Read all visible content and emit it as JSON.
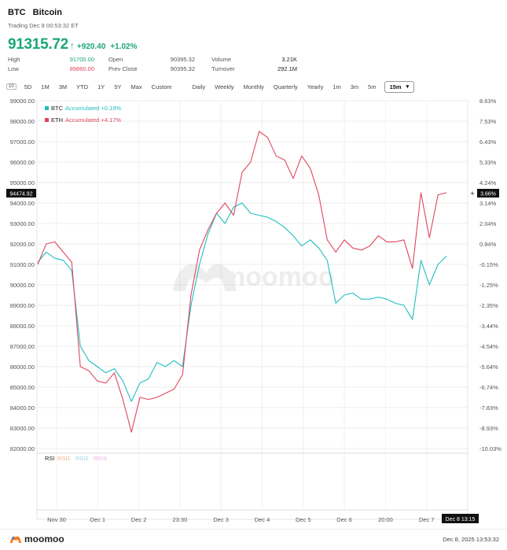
{
  "header": {
    "symbol": "BTC",
    "name": "Bitcoin",
    "status": "Trading Dec 8 00:53:32 ET",
    "price": "91315.72",
    "change": "+920.40",
    "change_pct": "+1.02%"
  },
  "stats": [
    {
      "label": "High",
      "value": "91700.00",
      "color": "#1aa67a"
    },
    {
      "label": "Open",
      "value": "90395.32",
      "color": "#555555"
    },
    {
      "label": "Volume",
      "value": "3.21K",
      "color": "#222222"
    },
    {
      "label": "Low",
      "value": "89860.00",
      "color": "#e0465e"
    },
    {
      "label": "Prev Close",
      "value": "90395.32",
      "color": "#555555"
    },
    {
      "label": "Turnover",
      "value": "292.1M",
      "color": "#222222"
    }
  ],
  "toolbar": {
    "icon_label": "10",
    "ranges": [
      "5D",
      "1M",
      "3M",
      "YTD",
      "1Y",
      "5Y",
      "Max",
      "Custom"
    ],
    "periods": [
      "Daily",
      "Weekly",
      "Monthly",
      "Quarterly",
      "Yearly",
      "1m",
      "3m",
      "5m"
    ],
    "selected_interval": "15m"
  },
  "chart_data": {
    "type": "line",
    "legend": [
      {
        "symbol": "BTC",
        "label": "Accumulated +0.19%",
        "color": "#1fbfc0"
      },
      {
        "symbol": "ETH",
        "label": "Accumulated +4.17%",
        "color": "#e0465e"
      }
    ],
    "y_left_ticks": [
      "99000.00",
      "98000.00",
      "97000.00",
      "96000.00",
      "95000.00",
      "94000.00",
      "93000.00",
      "92000.00",
      "91000.00",
      "90000.00",
      "89000.00",
      "88000.00",
      "87000.00",
      "86000.00",
      "85000.00",
      "84000.00",
      "83000.00",
      "82000.00"
    ],
    "y_right_ticks": [
      "8.63%",
      "7.53%",
      "6.43%",
      "5.33%",
      "4.24%",
      "3.14%",
      "2.04%",
      "0.94%",
      "-0.15%",
      "-1.25%",
      "-2.35%",
      "-3.44%",
      "-4.54%",
      "-5.64%",
      "-6.74%",
      "-7.83%",
      "-8.93%",
      "-10.03%"
    ],
    "ylim": [
      82000,
      99000
    ],
    "crosshair_left_value": "94474.92",
    "crosshair_right_value": "3.66%",
    "x_ticks": [
      "Nov 30",
      "Dec 1",
      "Dec 2",
      "23:30",
      "Dec 3",
      "Dec 4",
      "Dec 5",
      "Dec 6",
      "20:00",
      "Dec 7"
    ],
    "x_cursor_label": "Dec 8 13:15",
    "series": [
      {
        "name": "BTC",
        "color": "#1fbfc0",
        "values": [
          91100,
          91600,
          91300,
          91200,
          90700,
          87000,
          86300,
          86000,
          85700,
          85900,
          85300,
          84300,
          85200,
          85400,
          86200,
          86000,
          86300,
          86000,
          89000,
          91000,
          92500,
          93500,
          93000,
          93800,
          94000,
          93500,
          93400,
          93300,
          93100,
          92800,
          92400,
          91900,
          92200,
          91800,
          91200,
          89100,
          89500,
          89600,
          89300,
          89300,
          89400,
          89300,
          89100,
          89000,
          88300,
          91200,
          90000,
          91000,
          91400
        ]
      },
      {
        "name": "ETH",
        "color": "#e0465e",
        "values": [
          91000,
          92000,
          92100,
          91600,
          91100,
          86000,
          85800,
          85300,
          85200,
          85700,
          84400,
          82800,
          84500,
          84400,
          84500,
          84700,
          84900,
          85600,
          89500,
          91700,
          92700,
          93500,
          94000,
          93400,
          95500,
          96000,
          97500,
          97200,
          96300,
          96100,
          95200,
          96300,
          95700,
          94400,
          92200,
          91600,
          92200,
          91800,
          91700,
          91900,
          92400,
          92100,
          92100,
          92200,
          90800,
          94500,
          92300,
          94400,
          94500
        ]
      }
    ],
    "watermark": "moomoo",
    "rsi_label": "RSI",
    "rsi_keys": [
      {
        "label": "RSI1",
        "color": "#f2b487"
      },
      {
        "label": "RSI2",
        "color": "#9fd2e8"
      },
      {
        "label": "RSI3",
        "color": "#efb0e3"
      }
    ]
  },
  "footer": {
    "brand": "moomoo",
    "timestamp": "Dec 8, 2025 13:53:32"
  }
}
